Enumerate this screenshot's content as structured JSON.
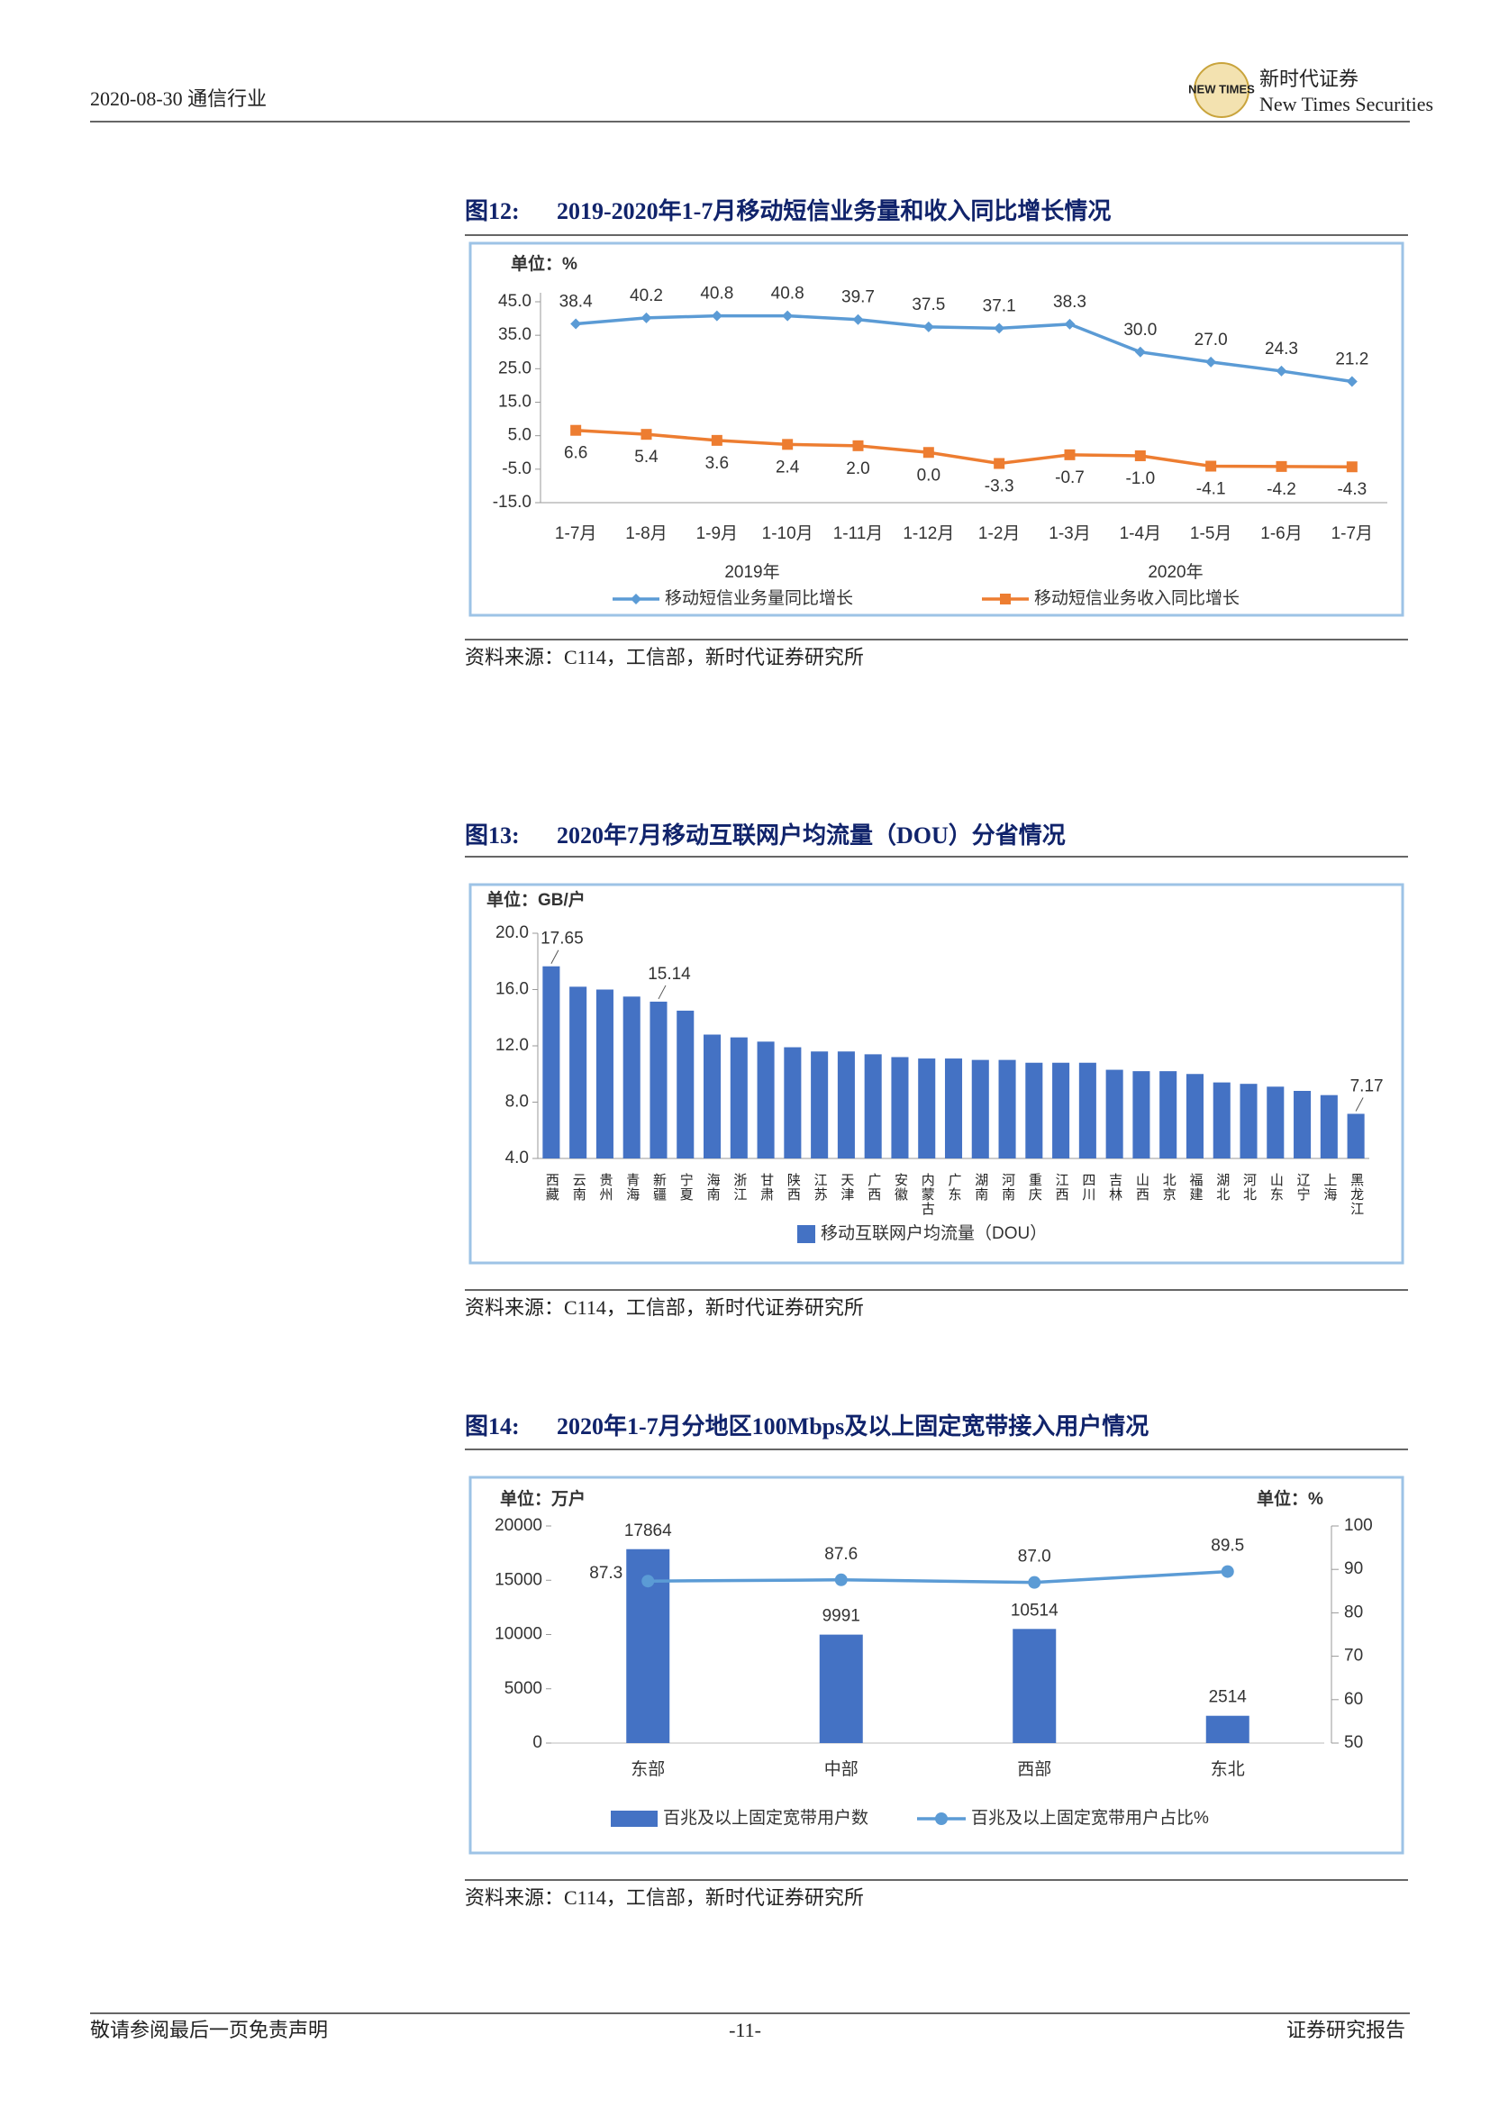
{
  "header": {
    "date_industry": "2020-08-30 通信行业",
    "logo_mark": "NEW TIMES",
    "company": "新时代证券",
    "company_en": "New Times Securities"
  },
  "chart_data": [
    {
      "type": "line",
      "figure": "图12:",
      "title": "2019-2020年1-7月移动短信业务量和收入同比增长情况",
      "y_label": "单位：%",
      "categories": [
        "1-7月",
        "1-8月",
        "1-9月",
        "1-10月",
        "1-11月",
        "1-12月",
        "1-2月",
        "1-3月",
        "1-4月",
        "1-5月",
        "1-6月",
        "1-7月"
      ],
      "x_groups": [
        "2019年",
        "2020年"
      ],
      "ylim": [
        -15,
        45
      ],
      "yticks": [
        {
          "value": -15,
          "label": "-15.0"
        },
        {
          "value": -5,
          "label": "-5.0"
        },
        {
          "value": 5,
          "label": "5.0"
        },
        {
          "value": 15,
          "label": "15.0"
        },
        {
          "value": 25,
          "label": "25.0"
        },
        {
          "value": 35,
          "label": "35.0"
        },
        {
          "value": 45,
          "label": "45.0"
        }
      ],
      "grid": false,
      "series": [
        {
          "name": "移动短信业务量同比增长",
          "color": "#5b9bd5",
          "values": [
            38.4,
            40.2,
            40.8,
            40.8,
            39.7,
            37.5,
            37.1,
            38.3,
            30.0,
            27.0,
            24.3,
            21.2
          ],
          "value_labels": [
            "38.4",
            "40.2",
            "40.8",
            "40.8",
            "39.7",
            "37.5",
            "37.1",
            "38.3",
            "30.0",
            "27.0",
            "24.3",
            "21.2"
          ]
        },
        {
          "name": "移动短信业务收入同比增长",
          "color": "#ed7d31",
          "values": [
            6.6,
            5.4,
            3.6,
            2.4,
            2.0,
            0.0,
            -3.3,
            -0.7,
            -1.0,
            -4.1,
            -4.2,
            -4.3
          ],
          "value_labels": [
            "6.6",
            "5.4",
            "3.6",
            "2.4",
            "2.0",
            "0.0",
            "-3.3",
            "-0.7",
            "-1.0",
            "-4.1",
            "-4.2",
            "-4.3"
          ]
        }
      ],
      "source": "资料来源：C114，工信部，新时代证券研究所"
    },
    {
      "type": "bar",
      "figure": "图13:",
      "title": "2020年7月移动互联网户均流量（DOU）分省情况",
      "y_label": "单位：GB/户",
      "categories": [
        "西藏",
        "云南",
        "贵州",
        "青海",
        "新疆",
        "宁夏",
        "海南",
        "浙江",
        "甘肃",
        "陕西",
        "江苏",
        "天津",
        "广西",
        "安徽",
        "内蒙古",
        "广东",
        "湖南",
        "河南",
        "重庆",
        "江西",
        "四川",
        "吉林",
        "山西",
        "北京",
        "福建",
        "湖北",
        "河北",
        "山东",
        "辽宁",
        "上海",
        "黑龙江"
      ],
      "series": [
        {
          "name": "移动互联网户均流量（DOU）",
          "color": "#4472c4",
          "values": [
            17.65,
            16.2,
            16.0,
            15.5,
            15.14,
            14.5,
            12.8,
            12.6,
            12.3,
            11.9,
            11.6,
            11.6,
            11.4,
            11.2,
            11.1,
            11.1,
            11.0,
            11.0,
            10.8,
            10.8,
            10.8,
            10.3,
            10.2,
            10.2,
            10.0,
            9.4,
            9.3,
            9.1,
            8.8,
            8.5,
            7.17
          ],
          "value_labels": [
            "17.65",
            null,
            null,
            null,
            "15.14",
            null,
            null,
            null,
            null,
            null,
            null,
            null,
            null,
            null,
            null,
            null,
            null,
            null,
            null,
            null,
            null,
            null,
            null,
            null,
            null,
            null,
            null,
            null,
            null,
            null,
            "7.17"
          ]
        }
      ],
      "ylim": [
        4,
        20
      ],
      "yticks": [
        {
          "value": 4,
          "label": "4.0"
        },
        {
          "value": 8,
          "label": "8.0"
        },
        {
          "value": 12,
          "label": "12.0"
        },
        {
          "value": 16,
          "label": "16.0"
        },
        {
          "value": 20,
          "label": "20.0"
        }
      ],
      "grid": false,
      "source": "资料来源：C114，工信部，新时代证券研究所"
    },
    {
      "type": "combo",
      "figure": "图14:",
      "title": "2020年1-7月分地区100Mbps及以上固定宽带接入用户情况",
      "y_label": "单位：万户",
      "y2_label": "单位：%",
      "categories": [
        "东部",
        "中部",
        "西部",
        "东北"
      ],
      "series": [
        {
          "name": "百兆及以上固定宽带用户数",
          "color": "#4472c4",
          "values": [
            17864,
            9991,
            10514,
            2514
          ]
        },
        {
          "name": "百兆及以上固定宽带用户占比%",
          "color": "#5b9bd5",
          "axis": "y2",
          "values": [
            87.3,
            87.6,
            87.0,
            89.5
          ],
          "value_labels": [
            "87.3",
            "87.6",
            "87.0",
            "89.5"
          ]
        }
      ],
      "ylim": [
        0,
        20000
      ],
      "yticks": [
        0,
        5000,
        10000,
        15000,
        20000
      ],
      "y2lim": [
        50,
        100
      ],
      "y2ticks": [
        50,
        60,
        70,
        80,
        90,
        100
      ],
      "grid": false,
      "source": "资料来源：C114，工信部，新时代证券研究所"
    }
  ],
  "footer": {
    "disclaimer": "敬请参阅最后一页免责声明",
    "page": "-11-",
    "report_type": "证券研究报告"
  }
}
